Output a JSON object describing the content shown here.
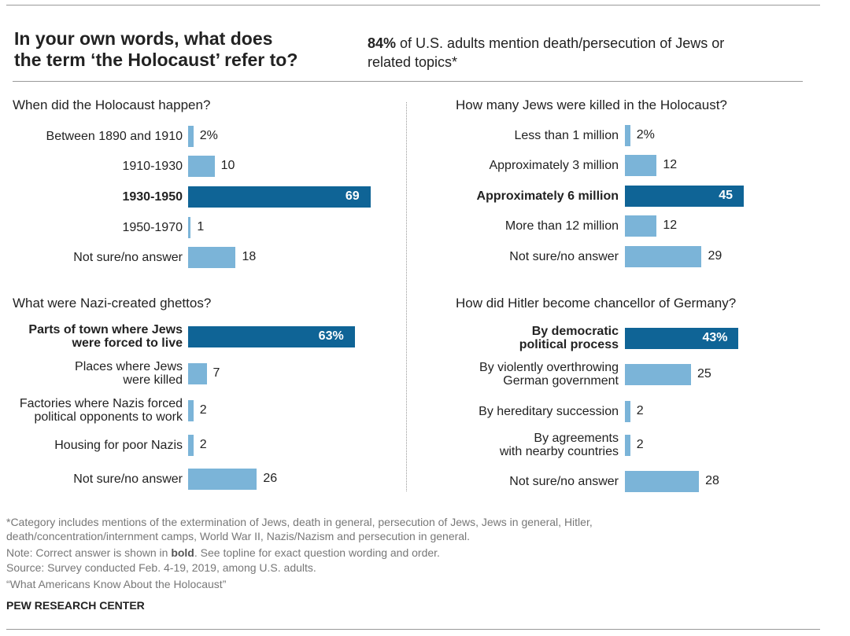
{
  "title": "In your own words, what does\nthe term ‘the Holocaust’ refer to?",
  "subtitle": {
    "bold": "84%",
    "text": " of U.S. adults mention death/persecution of Jews or related topics*"
  },
  "footnote": "*Category includes mentions of the extermination of Jews, death in general, persecution of Jews, Jews in general, Hitler,\ndeath/concentration/internment camps, World War II, Nazis/Nazism and persecution in general.",
  "note": [
    "Note: Correct answer is shown in ",
    "bold",
    ". See topline for exact question wording and order."
  ],
  "source": "Source: Survey conducted Feb. 4-19, 2019, among U.S. adults.",
  "report": "“What Americans Know About the Holocaust”",
  "brand": "PEW RESEARCH CENTER",
  "chart_data": [
    {
      "type": "bar",
      "orientation": "horizontal",
      "title": "When did the Holocaust happen?",
      "categories": [
        "Between 1890 and 1910",
        "1910-1930",
        "1930-1950",
        "1950-1970",
        "Not sure/no answer"
      ],
      "values": [
        2,
        10,
        69,
        1,
        18
      ],
      "value_labels": [
        "2%",
        "10",
        "69",
        "1",
        "18"
      ],
      "correct": 2,
      "color": "#7bb4d8",
      "correct_color": "#0f6496",
      "xlim": [
        0,
        100
      ]
    },
    {
      "type": "bar",
      "orientation": "horizontal",
      "title": "How many Jews were killed in the Holocaust?",
      "categories": [
        "Less than 1 million",
        "Approximately 3 million",
        "Approximately 6 million",
        "More than 12 million",
        "Not sure/no answer"
      ],
      "values": [
        2,
        12,
        45,
        12,
        29
      ],
      "value_labels": [
        "2%",
        "12",
        "45",
        "12",
        "29"
      ],
      "correct": 2,
      "color": "#7bb4d8",
      "correct_color": "#0f6496",
      "xlim": [
        0,
        100
      ]
    },
    {
      "type": "bar",
      "orientation": "horizontal",
      "title": "What were Nazi-created ghettos?",
      "categories": [
        "Parts of town where Jews\nwere forced to live",
        "Places where Jews\nwere killed",
        "Factories where Nazis forced\npolitical opponents to work",
        "Housing for poor Nazis",
        "Not sure/no answer"
      ],
      "values": [
        63,
        7,
        2,
        2,
        26
      ],
      "value_labels": [
        "63%",
        "7",
        "2",
        "2",
        "26"
      ],
      "correct": 0,
      "color": "#7bb4d8",
      "correct_color": "#0f6496",
      "xlim": [
        0,
        100
      ]
    },
    {
      "type": "bar",
      "orientation": "horizontal",
      "title": "How did Hitler become chancellor of Germany?",
      "categories": [
        "By democratic\npolitical process",
        "By violently overthrowing\nGerman government",
        "By hereditary succession",
        "By agreements\nwith nearby countries",
        "Not sure/no answer"
      ],
      "values": [
        43,
        25,
        2,
        2,
        28
      ],
      "value_labels": [
        "43%",
        "25",
        "2",
        "2",
        "28"
      ],
      "correct": 0,
      "color": "#7bb4d8",
      "correct_color": "#0f6496",
      "xlim": [
        0,
        100
      ]
    }
  ]
}
